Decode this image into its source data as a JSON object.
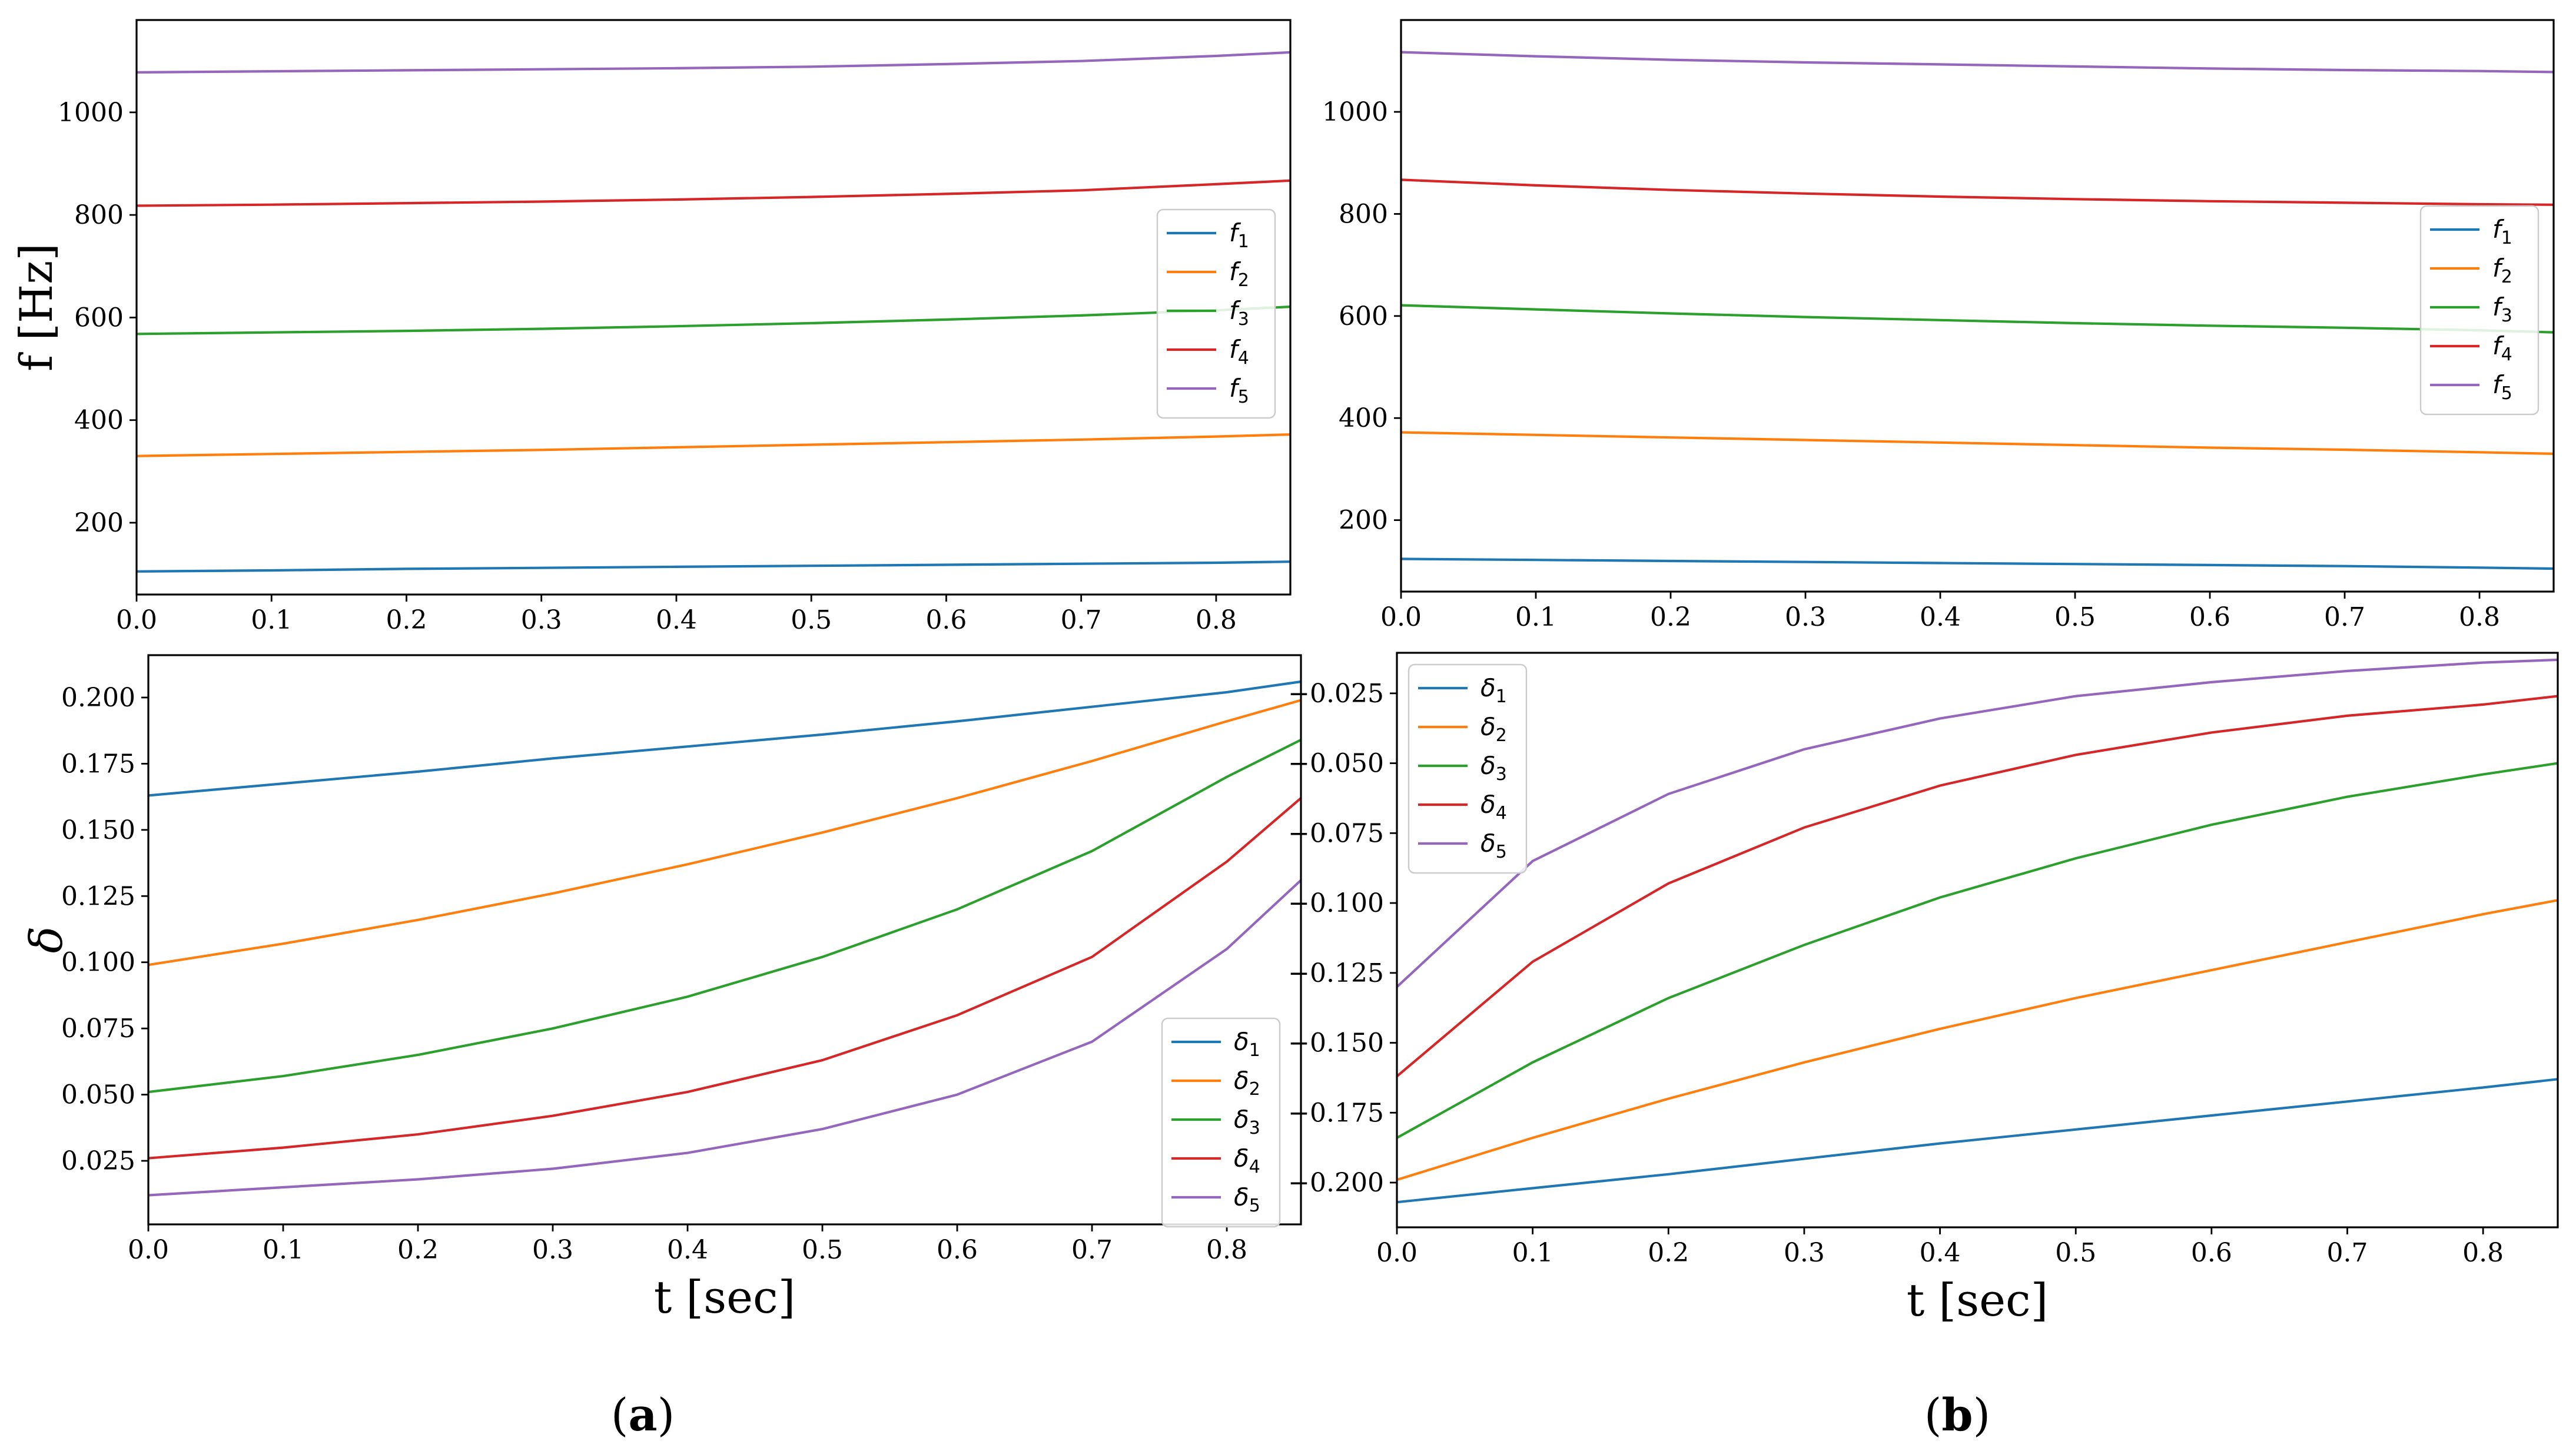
{
  "colors": {
    "s1": "#1f77b4",
    "s2": "#ff7f0e",
    "s3": "#2ca02c",
    "s4": "#d62728",
    "s5": "#9467bd"
  },
  "captions": {
    "a": "a",
    "b": "b"
  },
  "chart_data": [
    {
      "id": "a-freq",
      "type": "line",
      "title": "",
      "xlabel": "",
      "ylabel": "f [Hz]",
      "xlim": [
        0,
        0.855
      ],
      "ylim": [
        60,
        1180
      ],
      "xticks": [
        "0.0",
        "0.1",
        "0.2",
        "0.3",
        "0.4",
        "0.5",
        "0.6",
        "0.7",
        "0.8"
      ],
      "xtick_values": [
        0,
        0.1,
        0.2,
        0.3,
        0.4,
        0.5,
        0.6,
        0.7,
        0.8
      ],
      "yticks": [
        "200",
        "400",
        "600",
        "800",
        "1000"
      ],
      "ytick_values": [
        200,
        400,
        600,
        800,
        1000
      ],
      "legend": {
        "placement": "center-right",
        "entries": [
          "f",
          "f",
          "f",
          "f",
          "f"
        ],
        "subscripts": [
          "1",
          "2",
          "3",
          "4",
          "5"
        ]
      },
      "x": [
        0,
        0.1,
        0.2,
        0.3,
        0.4,
        0.5,
        0.6,
        0.7,
        0.8,
        0.855
      ],
      "series": [
        {
          "name": "f1",
          "values": [
            105,
            107,
            110,
            112,
            114,
            116,
            118,
            120,
            122,
            124
          ]
        },
        {
          "name": "f2",
          "values": [
            330,
            334,
            338,
            342,
            347,
            352,
            357,
            362,
            368,
            372
          ]
        },
        {
          "name": "f3",
          "values": [
            568,
            571,
            574,
            578,
            583,
            589,
            596,
            604,
            614,
            621
          ]
        },
        {
          "name": "f4",
          "values": [
            818,
            820,
            823,
            826,
            830,
            835,
            841,
            848,
            860,
            867
          ]
        },
        {
          "name": "f5",
          "values": [
            1078,
            1080,
            1082,
            1084,
            1086,
            1089,
            1094,
            1100,
            1110,
            1117
          ]
        }
      ]
    },
    {
      "id": "b-freq",
      "type": "line",
      "title": "",
      "xlabel": "",
      "ylabel": "",
      "xlim": [
        0,
        0.855
      ],
      "ylim": [
        60,
        1180
      ],
      "xticks": [
        "0.0",
        "0.1",
        "0.2",
        "0.3",
        "0.4",
        "0.5",
        "0.6",
        "0.7",
        "0.8"
      ],
      "xtick_values": [
        0,
        0.1,
        0.2,
        0.3,
        0.4,
        0.5,
        0.6,
        0.7,
        0.8
      ],
      "yticks": [
        "200",
        "400",
        "600",
        "800",
        "1000"
      ],
      "ytick_values": [
        200,
        400,
        600,
        800,
        1000
      ],
      "legend": {
        "placement": "center-right",
        "entries": [
          "f",
          "f",
          "f",
          "f",
          "f"
        ],
        "subscripts": [
          "1",
          "2",
          "3",
          "4",
          "5"
        ]
      },
      "x": [
        0,
        0.1,
        0.2,
        0.3,
        0.4,
        0.5,
        0.6,
        0.7,
        0.8,
        0.855
      ],
      "series": [
        {
          "name": "f1",
          "values": [
            124,
            122,
            120,
            118,
            116,
            114,
            112,
            110,
            107,
            105
          ]
        },
        {
          "name": "f2",
          "values": [
            372,
            367,
            362,
            357,
            352,
            347,
            342,
            338,
            333,
            330
          ]
        },
        {
          "name": "f3",
          "values": [
            621,
            613,
            605,
            598,
            592,
            586,
            581,
            577,
            572,
            568
          ]
        },
        {
          "name": "f4",
          "values": [
            867,
            856,
            847,
            840,
            834,
            829,
            825,
            822,
            819,
            818
          ]
        },
        {
          "name": "f5",
          "values": [
            1117,
            1109,
            1102,
            1097,
            1093,
            1089,
            1085,
            1082,
            1080,
            1078
          ]
        }
      ]
    },
    {
      "id": "a-delta",
      "type": "line",
      "title": "",
      "xlabel": "t [sec]",
      "ylabel": "δ",
      "xlim": [
        0,
        0.855
      ],
      "ylim": [
        0.001,
        0.216
      ],
      "xticks": [
        "0.0",
        "0.1",
        "0.2",
        "0.3",
        "0.4",
        "0.5",
        "0.6",
        "0.7",
        "0.8"
      ],
      "xtick_values": [
        0,
        0.1,
        0.2,
        0.3,
        0.4,
        0.5,
        0.6,
        0.7,
        0.8
      ],
      "yticks": [
        "0.025",
        "0.050",
        "0.075",
        "0.100",
        "0.125",
        "0.150",
        "0.175",
        "0.200"
      ],
      "ytick_values": [
        0.025,
        0.05,
        0.075,
        0.1,
        0.125,
        0.15,
        0.175,
        0.2
      ],
      "legend": {
        "placement": "lower-right",
        "entries": [
          "δ",
          "δ",
          "δ",
          "δ",
          "δ"
        ],
        "subscripts": [
          "1",
          "2",
          "3",
          "4",
          "5"
        ]
      },
      "x": [
        0,
        0.1,
        0.2,
        0.3,
        0.4,
        0.5,
        0.6,
        0.7,
        0.8,
        0.855
      ],
      "series": [
        {
          "name": "δ1",
          "values": [
            0.163,
            0.1675,
            0.172,
            0.177,
            0.1815,
            0.186,
            0.191,
            0.1965,
            0.202,
            0.206
          ]
        },
        {
          "name": "δ2",
          "values": [
            0.099,
            0.107,
            0.116,
            0.126,
            0.137,
            0.149,
            0.162,
            0.176,
            0.191,
            0.199
          ]
        },
        {
          "name": "δ3",
          "values": [
            0.051,
            0.057,
            0.065,
            0.075,
            0.087,
            0.102,
            0.12,
            0.142,
            0.17,
            0.184
          ]
        },
        {
          "name": "δ4",
          "values": [
            0.026,
            0.03,
            0.035,
            0.042,
            0.051,
            0.063,
            0.08,
            0.102,
            0.138,
            0.162
          ]
        },
        {
          "name": "δ5",
          "values": [
            0.012,
            0.015,
            0.018,
            0.022,
            0.028,
            0.037,
            0.05,
            0.07,
            0.105,
            0.131
          ]
        }
      ]
    },
    {
      "id": "b-delta",
      "type": "line",
      "title": "",
      "xlabel": "t [sec]",
      "ylabel": "",
      "xlim": [
        0,
        0.855
      ],
      "ylim": [
        -0.216,
        -0.0105
      ],
      "xticks": [
        "0.0",
        "0.1",
        "0.2",
        "0.3",
        "0.4",
        "0.5",
        "0.6",
        "0.7",
        "0.8"
      ],
      "xtick_values": [
        0,
        0.1,
        0.2,
        0.3,
        0.4,
        0.5,
        0.6,
        0.7,
        0.8
      ],
      "yticks": [
        "−0.200",
        "−0.175",
        "−0.150",
        "−0.125",
        "−0.100",
        "−0.075",
        "−0.050",
        "−0.025"
      ],
      "ytick_values": [
        -0.2,
        -0.175,
        -0.15,
        -0.125,
        -0.1,
        -0.075,
        -0.05,
        -0.025
      ],
      "legend": {
        "placement": "top-left",
        "entries": [
          "δ",
          "δ",
          "δ",
          "δ",
          "δ"
        ],
        "subscripts": [
          "1",
          "2",
          "3",
          "4",
          "5"
        ]
      },
      "x": [
        0,
        0.1,
        0.2,
        0.3,
        0.4,
        0.5,
        0.6,
        0.7,
        0.8,
        0.855
      ],
      "series": [
        {
          "name": "δ1",
          "values": [
            -0.207,
            -0.202,
            -0.197,
            -0.1915,
            -0.186,
            -0.181,
            -0.176,
            -0.171,
            -0.166,
            -0.163
          ]
        },
        {
          "name": "δ2",
          "values": [
            -0.199,
            -0.184,
            -0.17,
            -0.157,
            -0.145,
            -0.134,
            -0.124,
            -0.114,
            -0.104,
            -0.099
          ]
        },
        {
          "name": "δ3",
          "values": [
            -0.184,
            -0.157,
            -0.134,
            -0.115,
            -0.098,
            -0.084,
            -0.072,
            -0.062,
            -0.054,
            -0.05
          ]
        },
        {
          "name": "δ4",
          "values": [
            -0.162,
            -0.121,
            -0.093,
            -0.073,
            -0.058,
            -0.047,
            -0.039,
            -0.033,
            -0.029,
            -0.026
          ]
        },
        {
          "name": "δ5",
          "values": [
            -0.13,
            -0.085,
            -0.061,
            -0.045,
            -0.034,
            -0.026,
            -0.021,
            -0.017,
            -0.014,
            -0.013
          ]
        }
      ]
    }
  ]
}
